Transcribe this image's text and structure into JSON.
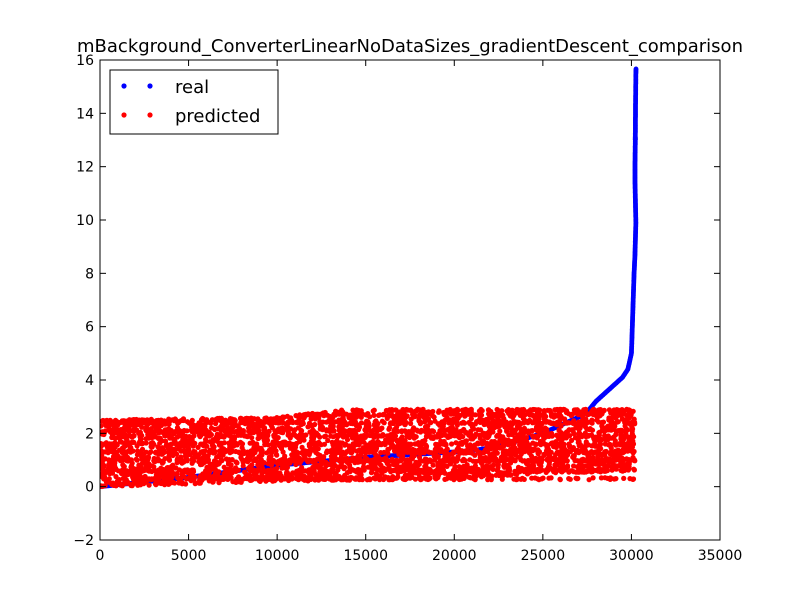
{
  "chart_data": {
    "type": "scatter",
    "title": "mBackground_ConverterLinearNoDataSizes_gradientDescent_comparison",
    "xlabel": "",
    "ylabel": "",
    "xlim": [
      0,
      35000
    ],
    "ylim": [
      -2,
      16
    ],
    "xticks": [
      0,
      5000,
      10000,
      15000,
      20000,
      25000,
      30000,
      35000
    ],
    "yticks": [
      -2,
      0,
      2,
      4,
      6,
      8,
      10,
      12,
      14,
      16
    ],
    "xtick_labels": [
      "0",
      "5000",
      "10000",
      "15000",
      "20000",
      "25000",
      "30000",
      "35000"
    ],
    "ytick_labels": [
      "−2",
      "0",
      "2",
      "4",
      "6",
      "8",
      "10",
      "12",
      "14",
      "16"
    ],
    "grid": false,
    "legend": {
      "position": "top-left"
    },
    "series": [
      {
        "name": "real",
        "color": "#0000ff",
        "description_points": [
          [
            0,
            0.0
          ],
          [
            5000,
            0.35
          ],
          [
            10000,
            0.8
          ],
          [
            15000,
            1.1
          ],
          [
            20000,
            1.3
          ],
          [
            21000,
            1.35
          ],
          [
            22000,
            1.45
          ],
          [
            23000,
            1.6
          ],
          [
            25000,
            2.0
          ],
          [
            26000,
            2.3
          ],
          [
            27000,
            2.6
          ],
          [
            27500,
            2.8
          ],
          [
            28000,
            3.2
          ],
          [
            28500,
            3.5
          ],
          [
            29000,
            3.8
          ],
          [
            29500,
            4.1
          ],
          [
            29800,
            4.4
          ],
          [
            30000,
            5.0
          ],
          [
            30050,
            6.0
          ],
          [
            30100,
            7.0
          ],
          [
            30150,
            8.0
          ],
          [
            30200,
            8.7
          ],
          [
            30250,
            9.9
          ],
          [
            30200,
            11.5
          ],
          [
            30200,
            12.0
          ],
          [
            30220,
            13.0
          ],
          [
            30220,
            13.1
          ],
          [
            30230,
            14.2
          ],
          [
            30240,
            14.8
          ],
          [
            30250,
            15.5
          ],
          [
            30260,
            15.7
          ]
        ]
      },
      {
        "name": "predicted",
        "color": "#ff0000",
        "x_range": [
          0,
          30200
        ],
        "band_lower": [
          [
            0,
            0.0
          ],
          [
            10000,
            0.2
          ],
          [
            20000,
            0.3
          ],
          [
            25000,
            0.5
          ],
          [
            30200,
            0.6
          ]
        ],
        "band_upper": [
          [
            0,
            2.5
          ],
          [
            10000,
            2.6
          ],
          [
            14000,
            2.9
          ],
          [
            30200,
            2.9
          ]
        ],
        "horizontal_levels": [
          0.3,
          0.6,
          1.0,
          1.3,
          1.6,
          1.9,
          2.1,
          2.4,
          2.7,
          2.9
        ]
      }
    ]
  }
}
